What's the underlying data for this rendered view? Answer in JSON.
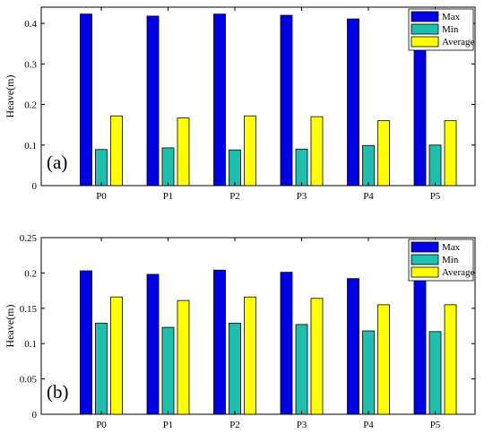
{
  "chart_data": [
    {
      "type": "bar",
      "panel_label": "(a)",
      "categories": [
        "P0",
        "P1",
        "P2",
        "P3",
        "P4",
        "P5"
      ],
      "series": [
        {
          "name": "Max",
          "color": "#0000e6",
          "values": [
            0.423,
            0.418,
            0.423,
            0.42,
            0.411,
            0.411
          ]
        },
        {
          "name": "Min",
          "color": "#1fbfb0",
          "values": [
            0.089,
            0.093,
            0.088,
            0.09,
            0.099,
            0.1
          ]
        },
        {
          "name": "Average",
          "color": "#ffff00",
          "values": [
            0.172,
            0.167,
            0.172,
            0.17,
            0.16,
            0.16
          ]
        }
      ],
      "ylabel": "Heave(m)",
      "ylim": [
        0,
        0.44
      ],
      "yticks": [
        0,
        0.1,
        0.2,
        0.3,
        0.4
      ],
      "ytick_labels": [
        "0",
        "0.1",
        "0.2",
        "0.3",
        "0.4"
      ],
      "legend_position": "top-right",
      "grid": false
    },
    {
      "type": "bar",
      "panel_label": "(b)",
      "categories": [
        "P0",
        "P1",
        "P2",
        "P3",
        "P4",
        "P5"
      ],
      "series": [
        {
          "name": "Max",
          "color": "#0000e6",
          "values": [
            0.203,
            0.198,
            0.204,
            0.201,
            0.192,
            0.192
          ]
        },
        {
          "name": "Min",
          "color": "#1fbfb0",
          "values": [
            0.129,
            0.123,
            0.129,
            0.127,
            0.118,
            0.117
          ]
        },
        {
          "name": "Average",
          "color": "#ffff00",
          "values": [
            0.166,
            0.161,
            0.166,
            0.164,
            0.155,
            0.155
          ]
        }
      ],
      "ylabel": "Heave(m)",
      "ylim": [
        0,
        0.25
      ],
      "yticks": [
        0,
        0.05,
        0.1,
        0.15,
        0.2,
        0.25
      ],
      "ytick_labels": [
        "0",
        "0.05",
        "0.1",
        "0.15",
        "0.2",
        "0.25"
      ],
      "legend_position": "top-right",
      "grid": false
    }
  ]
}
